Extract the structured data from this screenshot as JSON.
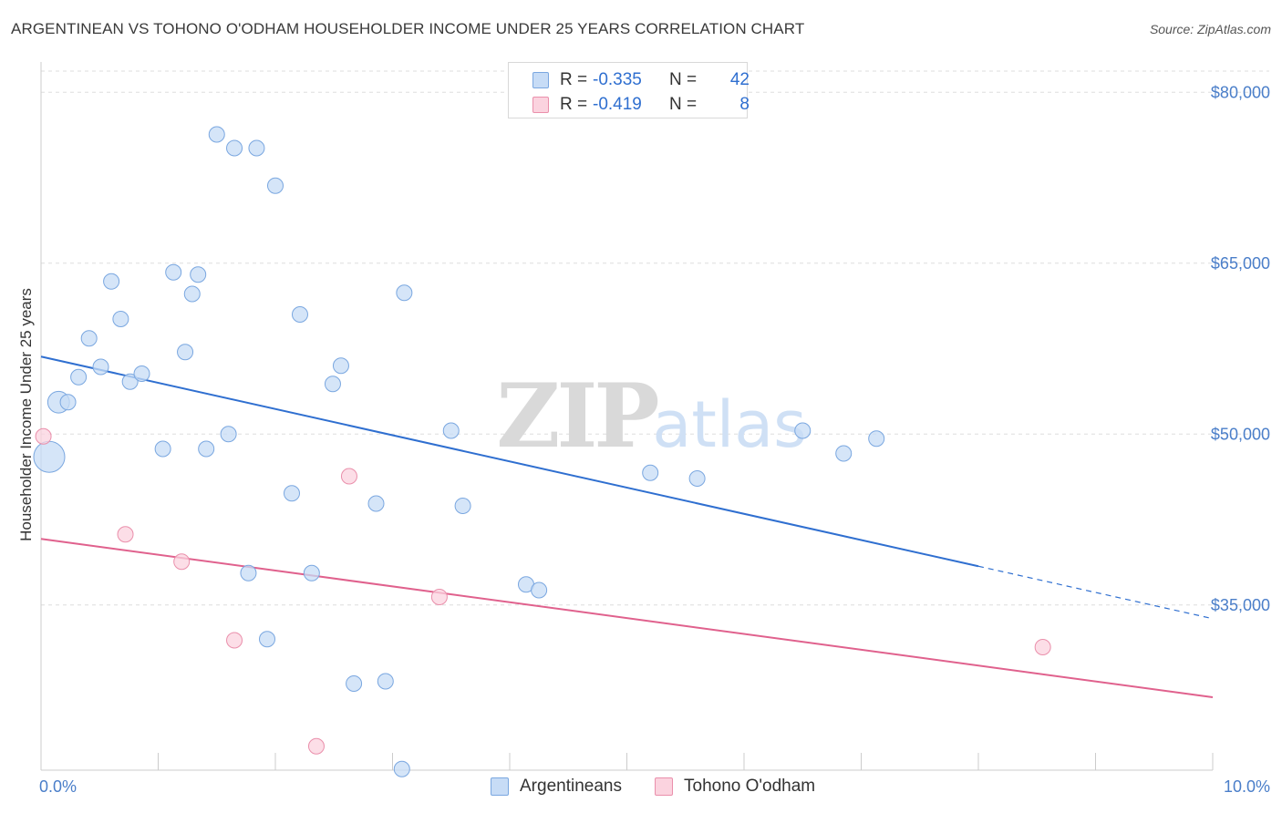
{
  "header": {
    "title": "ARGENTINEAN VS TOHONO O'ODHAM HOUSEHOLDER INCOME UNDER 25 YEARS CORRELATION CHART",
    "source": "Source: ZipAtlas.com"
  },
  "watermark": {
    "zip": "ZIP",
    "atlas": "atlas"
  },
  "legend": {
    "rows": [
      {
        "r_label": "R =",
        "r_value": "-0.335",
        "n_label": "N =",
        "n_value": "42"
      },
      {
        "r_label": "R =",
        "r_value": "-0.419",
        "n_label": "N =",
        "n_value": "8"
      }
    ]
  },
  "bottom_legend": {
    "argentineans": "Argentineans",
    "tohono": "Tohono O'odham"
  },
  "colors": {
    "blue_fill": "#c7dcf6",
    "blue_stroke": "#7aa7e0",
    "blue_line": "#2f6fd0",
    "pink_fill": "#fbd3df",
    "pink_stroke": "#ea8fab",
    "pink_line": "#e0618d",
    "tick_text": "#4a7ec9"
  },
  "chart_data": {
    "type": "scatter",
    "title": "ARGENTINEAN VS TOHONO O'ODHAM HOUSEHOLDER INCOME UNDER 25 YEARS CORRELATION CHART",
    "xlabel": "",
    "ylabel": "Householder Income Under 25 years",
    "xlim": [
      0,
      10
    ],
    "ylim": [
      20500,
      82500
    ],
    "x_tick_labels": [
      "0.0%",
      "10.0%"
    ],
    "y_ticks": [
      35000,
      50000,
      65000,
      80000
    ],
    "y_tick_labels": [
      "$35,000",
      "$50,000",
      "$65,000",
      "$80,000"
    ],
    "grid": "horizontal dashed",
    "legend_position": "top-center",
    "series": [
      {
        "name": "Argentineans",
        "R": -0.335,
        "N": 42,
        "points": [
          [
            0.07,
            48000,
            2.0
          ],
          [
            0.15,
            52800,
            1.4
          ],
          [
            0.23,
            52800,
            1.0
          ],
          [
            0.32,
            55000,
            1.0
          ],
          [
            0.41,
            58400,
            1.0
          ],
          [
            0.51,
            55900,
            1.0
          ],
          [
            0.6,
            63400,
            1.0
          ],
          [
            0.68,
            60100,
            1.0
          ],
          [
            0.76,
            54600,
            1.0
          ],
          [
            0.86,
            55300,
            1.0
          ],
          [
            1.04,
            48700,
            1.0
          ],
          [
            1.13,
            64200,
            1.0
          ],
          [
            1.34,
            64000,
            1.0
          ],
          [
            1.23,
            57200,
            1.0
          ],
          [
            1.29,
            62300,
            1.0
          ],
          [
            1.41,
            48700,
            1.0
          ],
          [
            1.6,
            50000,
            1.0
          ],
          [
            1.5,
            76300,
            1.0
          ],
          [
            1.65,
            75100,
            1.0
          ],
          [
            1.84,
            75100,
            1.0
          ],
          [
            2.0,
            71800,
            1.0
          ],
          [
            1.77,
            37800,
            1.0
          ],
          [
            1.93,
            32000,
            1.0
          ],
          [
            2.14,
            44800,
            1.0
          ],
          [
            2.21,
            60500,
            1.0
          ],
          [
            2.31,
            37800,
            1.0
          ],
          [
            2.49,
            54400,
            1.0
          ],
          [
            2.56,
            56000,
            1.0
          ],
          [
            2.67,
            28100,
            1.0
          ],
          [
            2.86,
            43900,
            1.0
          ],
          [
            2.94,
            28300,
            1.0
          ],
          [
            3.08,
            20600,
            1.0
          ],
          [
            3.1,
            62400,
            1.0
          ],
          [
            3.5,
            50300,
            1.0
          ],
          [
            3.6,
            43700,
            1.0
          ],
          [
            4.14,
            36800,
            1.0
          ],
          [
            4.25,
            36300,
            1.0
          ],
          [
            5.2,
            46600,
            1.0
          ],
          [
            5.6,
            46100,
            1.0
          ],
          [
            6.5,
            50300,
            1.0
          ],
          [
            6.85,
            48300,
            1.0
          ],
          [
            7.13,
            49600,
            1.0
          ]
        ]
      },
      {
        "name": "Tohono O'odham",
        "R": -0.419,
        "N": 8,
        "points": [
          [
            0.02,
            49800,
            1.0
          ],
          [
            0.72,
            41200,
            1.0
          ],
          [
            1.2,
            38800,
            1.0
          ],
          [
            1.65,
            31900,
            1.0
          ],
          [
            2.35,
            22600,
            1.0
          ],
          [
            2.63,
            46300,
            1.0
          ],
          [
            3.4,
            35700,
            1.0
          ],
          [
            8.55,
            31300,
            1.0
          ]
        ]
      }
    ],
    "trendlines": [
      {
        "series": "Argentineans",
        "x1": 0,
        "y1": 56800,
        "x2": 8.0,
        "y2": 38400,
        "dashed_to_x": 10.0,
        "dashed_to_y": 33800
      },
      {
        "series": "Tohono O'odham",
        "x1": 0,
        "y1": 40800,
        "x2": 10.0,
        "y2": 26900
      }
    ]
  }
}
